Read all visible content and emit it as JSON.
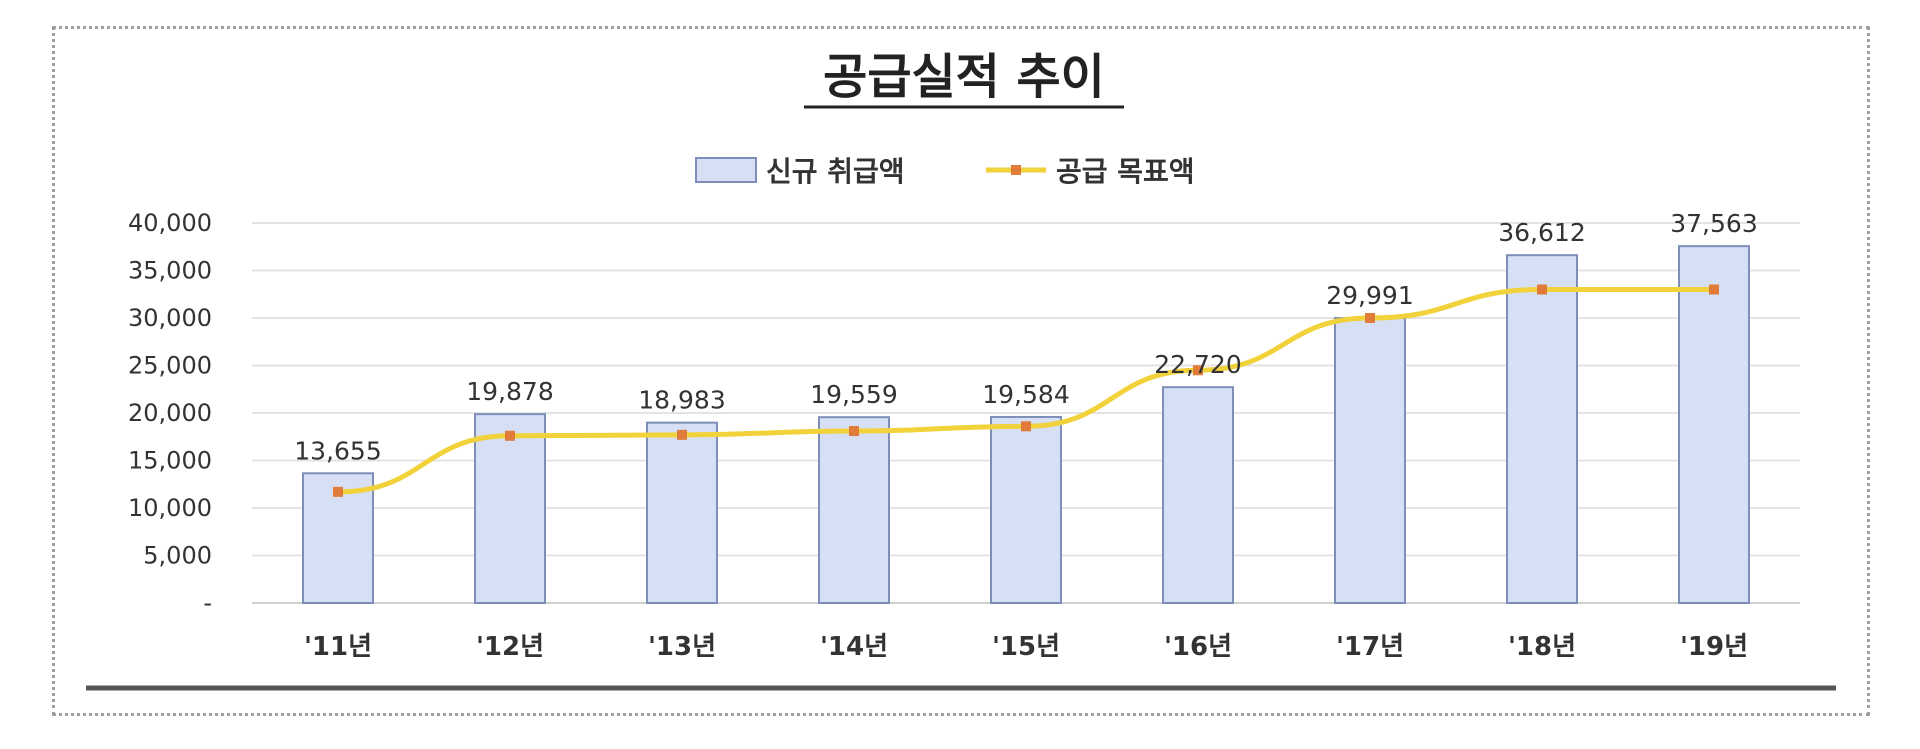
{
  "chart_data": {
    "type": "bar",
    "title": "공급실적 추이",
    "categories": [
      "'11년",
      "'12년",
      "'13년",
      "'14년",
      "'15년",
      "'16년",
      "'17년",
      "'18년",
      "'19년"
    ],
    "series": [
      {
        "name": "신규 취급액",
        "type": "bar",
        "values": [
          13655,
          19878,
          18983,
          19559,
          19584,
          22720,
          29991,
          36612,
          37563
        ],
        "labels": [
          "13,655",
          "19,878",
          "18,983",
          "19,559",
          "19,584",
          "22,720",
          "29,991",
          "36,612",
          "37,563"
        ],
        "color": "#d6dff3"
      },
      {
        "name": "공급 목표액",
        "type": "line",
        "values": [
          11700,
          17600,
          17700,
          18100,
          18600,
          24500,
          30000,
          33000,
          33000
        ],
        "color": "#f2d23a",
        "marker_color": "#e07b39"
      }
    ],
    "y_ticks": [
      "-",
      "5,000",
      "10,000",
      "15,000",
      "20,000",
      "25,000",
      "30,000",
      "35,000",
      "40,000"
    ],
    "ylim": [
      0,
      40000
    ],
    "grid": true,
    "legend": "top-center"
  }
}
